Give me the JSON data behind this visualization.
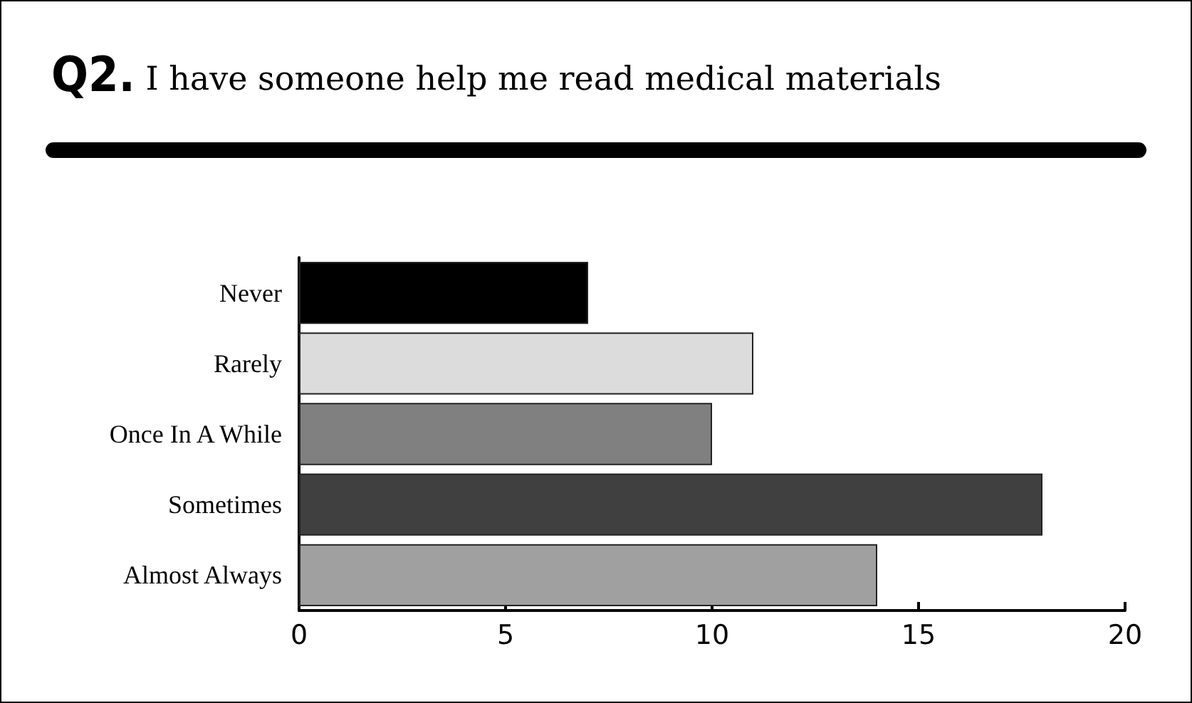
{
  "chart_data": {
    "type": "bar",
    "orientation": "horizontal",
    "title": "Q2. I have someone help me read medical materials",
    "categories": [
      "Never",
      "Rarely",
      "Once In A While",
      "Sometimes",
      "Almost Always"
    ],
    "values": [
      7,
      11,
      10,
      18,
      14
    ],
    "colors": [
      "#000000",
      "#dcdcdc",
      "#808080",
      "#404040",
      "#a0a0a0"
    ],
    "xlim": [
      0,
      20
    ],
    "xticks": [
      0,
      5,
      10,
      15,
      20
    ],
    "grid": false
  }
}
